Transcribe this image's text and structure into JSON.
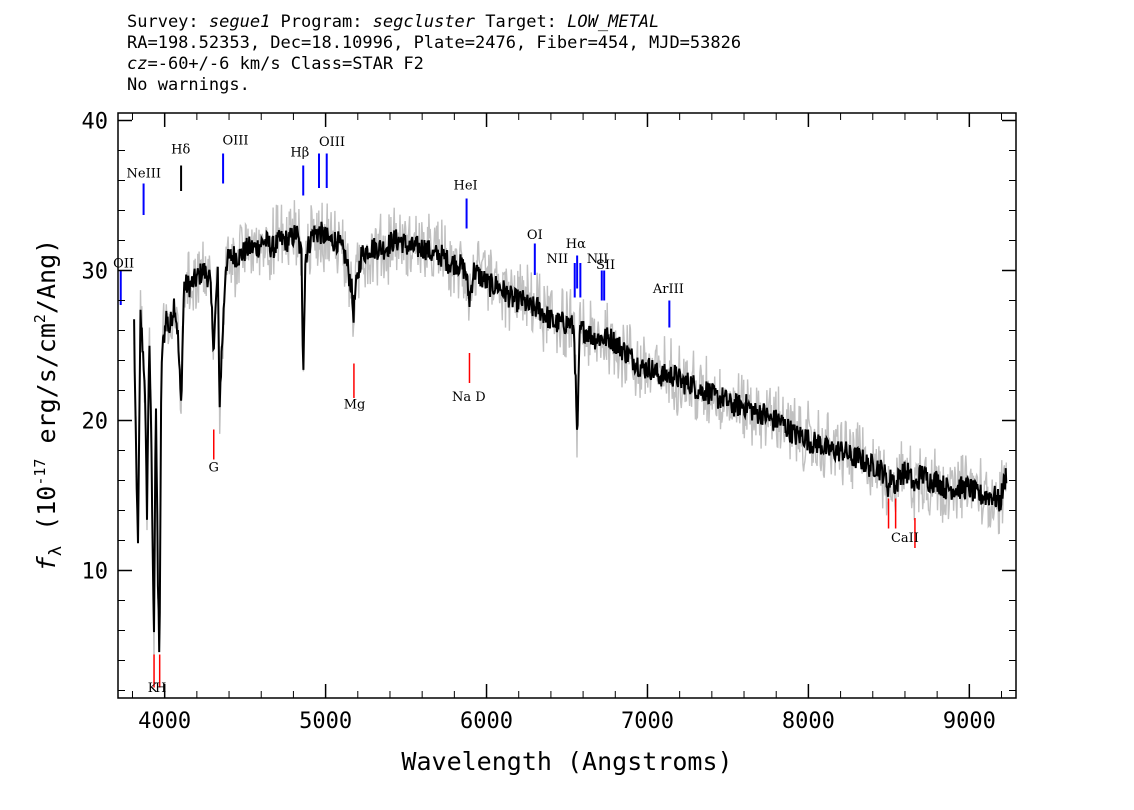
{
  "header": {
    "line1": {
      "survey_label": "Survey: ",
      "survey": "segue1",
      "program_label": " Program: ",
      "program": "segcluster",
      "target_label": " Target: ",
      "target": "LOW_METAL"
    },
    "line2": "RA=198.52353, Dec=18.10996, Plate=2476, Fiber=454, MJD=53826",
    "line3": {
      "cz_label": "cz",
      "cz_value": "=-60+/-6",
      "cz_rest": " km/s Class=STAR F2"
    },
    "line4": "No warnings."
  },
  "chart_data": {
    "type": "line",
    "xlabel": "Wavelength (Angstroms)",
    "ylabel": "f_λ (10^-17 erg/s/cm^2/Ang)",
    "ylabel_parts": {
      "symbol": "f",
      "sub": "λ",
      "pre": " (10",
      "exp": "-17",
      "mid": " erg/s/cm",
      "exp2": "2",
      "post": "/Ang)"
    },
    "xlim": [
      3710,
      9290
    ],
    "ylim": [
      1.5,
      40.5
    ],
    "xticks": [
      4000,
      5000,
      6000,
      7000,
      8000,
      9000
    ],
    "yticks": [
      10,
      20,
      30,
      40
    ],
    "series": [
      {
        "role": "flux",
        "color": "#000000",
        "points": [
          [
            3810,
            26.5
          ],
          [
            3825,
            15.5
          ],
          [
            3835,
            12
          ],
          [
            3850,
            27
          ],
          [
            3875,
            23
          ],
          [
            3890,
            14
          ],
          [
            3905,
            26
          ],
          [
            3920,
            16
          ],
          [
            3933,
            5
          ],
          [
            3945,
            22
          ],
          [
            3958,
            9
          ],
          [
            3968,
            4
          ],
          [
            3980,
            24
          ],
          [
            3990,
            25
          ],
          [
            4010,
            27
          ],
          [
            4030,
            26
          ],
          [
            4060,
            28
          ],
          [
            4080,
            26
          ],
          [
            4102,
            21
          ],
          [
            4120,
            29
          ],
          [
            4160,
            29
          ],
          [
            4200,
            29.5
          ],
          [
            4240,
            30
          ],
          [
            4280,
            29.5
          ],
          [
            4305,
            25
          ],
          [
            4330,
            30
          ],
          [
            4340,
            21
          ],
          [
            4380,
            30.5
          ],
          [
            4420,
            31
          ],
          [
            4470,
            31
          ],
          [
            4520,
            31.5
          ],
          [
            4570,
            31.5
          ],
          [
            4620,
            32
          ],
          [
            4670,
            31.5
          ],
          [
            4720,
            32
          ],
          [
            4770,
            32
          ],
          [
            4820,
            32.5
          ],
          [
            4850,
            31
          ],
          [
            4861,
            23.5
          ],
          [
            4875,
            31
          ],
          [
            4920,
            32.5
          ],
          [
            4970,
            32.5
          ],
          [
            5020,
            32
          ],
          [
            5070,
            32
          ],
          [
            5120,
            31
          ],
          [
            5160,
            29
          ],
          [
            5172,
            27
          ],
          [
            5185,
            28.5
          ],
          [
            5220,
            31
          ],
          [
            5270,
            31.5
          ],
          [
            5320,
            31.5
          ],
          [
            5370,
            31.5
          ],
          [
            5420,
            32
          ],
          [
            5470,
            32
          ],
          [
            5520,
            31.5
          ],
          [
            5570,
            31.5
          ],
          [
            5620,
            31.5
          ],
          [
            5670,
            31
          ],
          [
            5720,
            31
          ],
          [
            5770,
            30.5
          ],
          [
            5820,
            30.5
          ],
          [
            5870,
            30
          ],
          [
            5893,
            28
          ],
          [
            5920,
            30
          ],
          [
            5970,
            29.5
          ],
          [
            6020,
            29
          ],
          [
            6070,
            29
          ],
          [
            6120,
            28.5
          ],
          [
            6170,
            28
          ],
          [
            6220,
            28
          ],
          [
            6270,
            27.5
          ],
          [
            6320,
            27.5
          ],
          [
            6370,
            27
          ],
          [
            6420,
            26.5
          ],
          [
            6470,
            26.5
          ],
          [
            6520,
            26.5
          ],
          [
            6545,
            26
          ],
          [
            6563,
            18.5
          ],
          [
            6580,
            26
          ],
          [
            6620,
            26
          ],
          [
            6670,
            25.5
          ],
          [
            6720,
            25.5
          ],
          [
            6770,
            25.5
          ],
          [
            6820,
            25
          ],
          [
            6870,
            24.5
          ],
          [
            6920,
            24
          ],
          [
            6970,
            23.5
          ],
          [
            7020,
            23.5
          ],
          [
            7070,
            23
          ],
          [
            7120,
            23
          ],
          [
            7170,
            23
          ],
          [
            7220,
            22.5
          ],
          [
            7270,
            22.5
          ],
          [
            7320,
            22
          ],
          [
            7370,
            22
          ],
          [
            7420,
            21.5
          ],
          [
            7470,
            21.5
          ],
          [
            7520,
            21
          ],
          [
            7570,
            21
          ],
          [
            7620,
            21
          ],
          [
            7670,
            20.5
          ],
          [
            7720,
            20.5
          ],
          [
            7770,
            20
          ],
          [
            7820,
            20
          ],
          [
            7870,
            19.5
          ],
          [
            7920,
            19
          ],
          [
            7970,
            19
          ],
          [
            8020,
            18.5
          ],
          [
            8070,
            18.5
          ],
          [
            8120,
            18
          ],
          [
            8170,
            18
          ],
          [
            8220,
            18
          ],
          [
            8270,
            17.5
          ],
          [
            8320,
            17.5
          ],
          [
            8370,
            17
          ],
          [
            8420,
            17
          ],
          [
            8470,
            16.5
          ],
          [
            8498,
            15.5
          ],
          [
            8520,
            16.5
          ],
          [
            8542,
            15.5
          ],
          [
            8570,
            16.5
          ],
          [
            8620,
            16.5
          ],
          [
            8662,
            15.5
          ],
          [
            8700,
            16.5
          ],
          [
            8750,
            16
          ],
          [
            8800,
            16
          ],
          [
            8850,
            15.5
          ],
          [
            8900,
            15.5
          ],
          [
            8950,
            15.5
          ],
          [
            9000,
            15.5
          ],
          [
            9050,
            15
          ],
          [
            9100,
            15
          ],
          [
            9150,
            15
          ],
          [
            9190,
            14.5
          ],
          [
            9230,
            16.5
          ]
        ]
      },
      {
        "role": "noise-band",
        "color": "#c0c0c0",
        "spread": 1.6
      }
    ],
    "emission_lines": [
      {
        "label": "OII",
        "wavelength": 3727,
        "y_top": 30,
        "y_bottom": 27.7,
        "color": "#0000ff"
      },
      {
        "label": "NeIII",
        "wavelength": 3869,
        "y_top": 35.8,
        "y_bottom": 33.7,
        "color": "#0000ff"
      },
      {
        "label": "Hδ",
        "wavelength": 4102,
        "y_top": 37,
        "y_bottom": 35.3,
        "color": "#000000"
      },
      {
        "label": "OIII",
        "wavelength": 4363,
        "y_top": 37.8,
        "y_bottom": 35.8,
        "color": "#0000ff"
      },
      {
        "label": "Hβ",
        "wavelength": 4861,
        "y_top": 37,
        "y_bottom": 35,
        "color": "#0000ff"
      },
      {
        "label": "OIII",
        "wavelength": 4959,
        "y_top": 37.8,
        "y_bottom": 35.5,
        "color": "#0000ff"
      },
      {
        "label": "OIII",
        "wavelength": 5007,
        "y_top": 37.8,
        "y_bottom": 35.5,
        "color": "#0000ff"
      },
      {
        "label": "HeI",
        "wavelength": 5876,
        "y_top": 34.8,
        "y_bottom": 32.8,
        "color": "#0000ff"
      },
      {
        "label": "OI",
        "wavelength": 6300,
        "y_top": 31.8,
        "y_bottom": 29.7,
        "color": "#0000ff"
      },
      {
        "label": "NII",
        "wavelength": 6548,
        "y_top": 30.5,
        "y_bottom": 28.2,
        "color": "#0000ff"
      },
      {
        "label": "Hα",
        "wavelength": 6563,
        "y_top": 31,
        "y_bottom": 28.8,
        "color": "#0000ff"
      },
      {
        "label": "NII",
        "wavelength": 6583,
        "y_top": 30.5,
        "y_bottom": 28.2,
        "color": "#0000ff"
      },
      {
        "label": "SII",
        "wavelength": 6716,
        "y_top": 30,
        "y_bottom": 28,
        "color": "#0000ff"
      },
      {
        "label": "SII",
        "wavelength": 6731,
        "y_top": 30,
        "y_bottom": 28,
        "color": "#0000ff"
      },
      {
        "label": "ArIII",
        "wavelength": 7136,
        "y_top": 28,
        "y_bottom": 26.2,
        "color": "#0000ff"
      }
    ],
    "absorption_lines": [
      {
        "label": "K",
        "wavelength": 3934,
        "y_top": 4.4,
        "y_bottom": 2.2,
        "color": "#ff0000"
      },
      {
        "label": "H",
        "wavelength": 3969,
        "y_top": 4.4,
        "y_bottom": 2.2,
        "color": "#ff0000"
      },
      {
        "label": "G",
        "wavelength": 4305,
        "y_top": 19.4,
        "y_bottom": 17.4,
        "color": "#ff0000"
      },
      {
        "label": "Mg",
        "wavelength": 5176,
        "y_top": 23.8,
        "y_bottom": 21.5,
        "color": "#ff0000"
      },
      {
        "label": "Na",
        "wavelength": 5894,
        "y_top": 24.5,
        "y_bottom": 22.5,
        "color": "#ff0000"
      },
      {
        "label": "CaII",
        "wavelength": 8498,
        "y_top": 14.8,
        "y_bottom": 12.8,
        "color": "#ff0000"
      },
      {
        "label": "CaII",
        "wavelength": 8542,
        "y_top": 14.8,
        "y_bottom": 12.8,
        "color": "#ff0000"
      },
      {
        "label": "CaII",
        "wavelength": 8662,
        "y_top": 13.5,
        "y_bottom": 11.5,
        "color": "#ff0000"
      }
    ],
    "annotation_labels": [
      {
        "text": "OII",
        "x": 3745,
        "y": 30.2
      },
      {
        "text": "NeIII",
        "x": 3870,
        "y": 36.2
      },
      {
        "text": "Hδ",
        "x": 4100,
        "y": 37.8
      },
      {
        "text": "OIII",
        "x": 4440,
        "y": 38.4
      },
      {
        "text": "Hβ",
        "x": 4840,
        "y": 37.6
      },
      {
        "text": "OIII",
        "x": 5040,
        "y": 38.3
      },
      {
        "text": "HeI",
        "x": 5870,
        "y": 35.4
      },
      {
        "text": "OI",
        "x": 6300,
        "y": 32.1
      },
      {
        "text": "NII",
        "x": 6440,
        "y": 30.5
      },
      {
        "text": "Hα",
        "x": 6555,
        "y": 31.5
      },
      {
        "text": "NII",
        "x": 6690,
        "y": 30.5
      },
      {
        "text": "SII",
        "x": 6740,
        "y": 30.1
      },
      {
        "text": "ArIII",
        "x": 7130,
        "y": 28.5
      },
      {
        "text": "Mg",
        "x": 5180,
        "y": 20.8
      },
      {
        "text": "Na  D",
        "x": 5890,
        "y": 21.3
      },
      {
        "text": "G",
        "x": 4305,
        "y": 16.6
      },
      {
        "text": "CaII",
        "x": 8600,
        "y": 11.9
      },
      {
        "text": "K",
        "x": 3925,
        "y": 1.9
      },
      {
        "text": "H",
        "x": 3975,
        "y": 1.9
      }
    ]
  }
}
